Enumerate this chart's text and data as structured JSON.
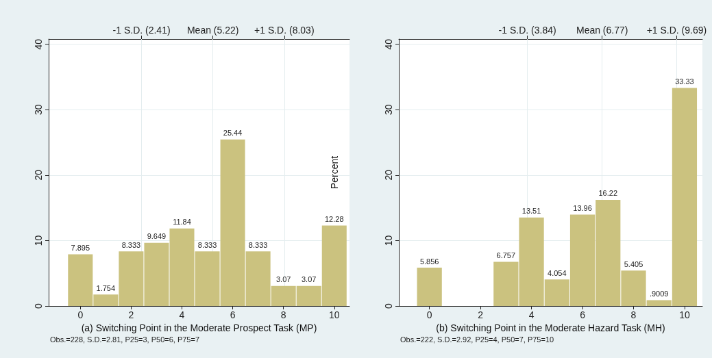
{
  "chart_data": [
    {
      "type": "histogram",
      "xlabel": "(a) Switching Point in the Moderate Prospect Task (MP)",
      "bins": [
        -0.5,
        0.5,
        1.5,
        2.5,
        3.5,
        4.5,
        5.5,
        6.5,
        7.5,
        8.5,
        9.5,
        10.5
      ],
      "values": [
        7.895,
        1.754,
        8.333,
        9.649,
        11.84,
        8.333,
        25.44,
        8.333,
        3.07,
        3.07,
        12.28
      ],
      "value_labels": [
        "7.895",
        "1.754",
        "8.333",
        "9.649",
        "11.84",
        "8.333",
        "25.44",
        "8.333",
        "3.07",
        "3.07",
        "12.28"
      ],
      "color": "#cbc27f",
      "xlim": [
        -1.25,
        10.6
      ],
      "xticks": [
        0,
        2,
        4,
        6,
        8,
        10
      ],
      "ylim": [
        0,
        40.8
      ],
      "yticks": [
        0,
        10,
        20,
        30,
        40
      ],
      "grid": "y",
      "ref_lines": [
        {
          "axis": "x",
          "value": 2.41,
          "label": "-1 S.D. (2.41)",
          "color": "#e4edef"
        },
        {
          "axis": "x",
          "value": 5.22,
          "label": "Mean (5.22)",
          "color": "#e4edef"
        },
        {
          "axis": "x",
          "value": 8.03,
          "label": "+1 S.D. (8.03)",
          "color": "#e4edef"
        }
      ],
      "annotations": [
        "Obs.=228, S.D.=2.81, P25=3, P50=6, P75=7"
      ]
    },
    {
      "type": "histogram",
      "xlabel": "(b) Switching Point in the Moderate Hazard Task (MH)",
      "ylabel": "Percent",
      "bins": [
        -0.5,
        0.5,
        1.5,
        2.5,
        3.5,
        4.5,
        5.5,
        6.5,
        7.5,
        8.5,
        9.5,
        10.5
      ],
      "values": [
        5.856,
        0,
        0,
        6.757,
        13.51,
        4.054,
        13.96,
        16.22,
        5.405,
        0.9009,
        33.33
      ],
      "value_labels": [
        "5.856",
        null,
        null,
        "6.757",
        "13.51",
        "4.054",
        "13.96",
        "16.22",
        "5.405",
        ".9009",
        "33.33"
      ],
      "color": "#cbc27f",
      "xlim": [
        -1.2,
        10.7
      ],
      "xticks": [
        0,
        2,
        4,
        6,
        8,
        10
      ],
      "ylim": [
        0,
        40.8
      ],
      "yticks": [
        0,
        10,
        20,
        30,
        40
      ],
      "grid": "y",
      "ref_lines": [
        {
          "axis": "x",
          "value": 3.84,
          "label": "-1 S.D. (3.84)",
          "color": "#e4edef"
        },
        {
          "axis": "x",
          "value": 6.77,
          "label": "Mean (6.77)",
          "color": "#e4edef"
        },
        {
          "axis": "x",
          "value": 9.69,
          "label": "+1 S.D. (9.69)",
          "color": "#e4edef"
        }
      ],
      "annotations": [
        "Obs.=222, S.D.=2.92, P25=4, P50=7, P75=10"
      ]
    }
  ]
}
